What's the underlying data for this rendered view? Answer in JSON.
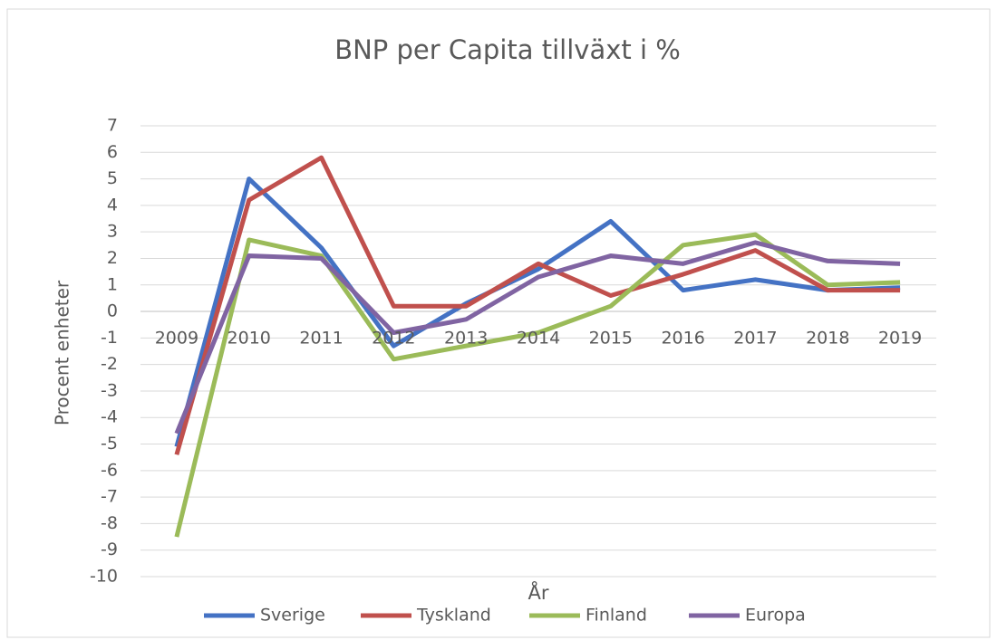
{
  "chart_data": {
    "type": "line",
    "title": "BNP per Capita tillväxt i %",
    "x_label": "År",
    "y_label": "Procent enheter",
    "categories": [
      "2009",
      "2010",
      "2011",
      "2012",
      "2013",
      "2014",
      "2015",
      "2016",
      "2017",
      "2018",
      "2019"
    ],
    "series": [
      {
        "name": "Sverige",
        "color": "#4472c4",
        "values": [
          -5.1,
          5.0,
          2.4,
          -1.3,
          0.3,
          1.6,
          3.4,
          0.8,
          1.2,
          0.8,
          0.9
        ]
      },
      {
        "name": "Tyskland",
        "color": "#c0504d",
        "values": [
          -5.4,
          4.2,
          5.8,
          0.2,
          0.2,
          1.8,
          0.6,
          1.4,
          2.3,
          0.8,
          0.8
        ]
      },
      {
        "name": "Finland",
        "color": "#9bbb59",
        "values": [
          -8.5,
          2.7,
          2.1,
          -1.8,
          -1.3,
          -0.8,
          0.2,
          2.5,
          2.9,
          1.0,
          1.1
        ]
      },
      {
        "name": "Europa",
        "color": "#8064a2",
        "values": [
          -4.6,
          2.1,
          2.0,
          -0.8,
          -0.3,
          1.3,
          2.1,
          1.8,
          2.6,
          1.9,
          1.8
        ]
      }
    ],
    "ylim": [
      -10,
      7
    ],
    "yticks": [
      -10,
      -9,
      -8,
      -7,
      -6,
      -5,
      -4,
      -3,
      -2,
      -1,
      0,
      1,
      2,
      3,
      4,
      5,
      6,
      7
    ],
    "grid": true,
    "legend": "bottom"
  }
}
